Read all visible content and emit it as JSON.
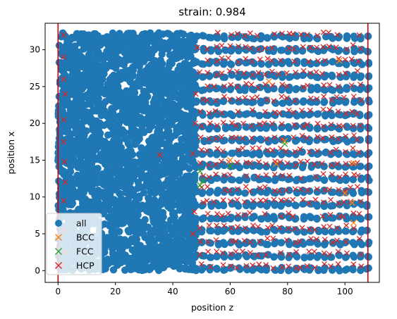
{
  "chart_data": {
    "type": "scatter",
    "title": "strain: 0.984",
    "xlabel": "position z",
    "ylabel": "position x",
    "xlim": [
      -4.5,
      112
    ],
    "ylim": [
      -1.6,
      33.6
    ],
    "xticks": [
      0,
      20,
      40,
      60,
      80,
      100
    ],
    "yticks": [
      0,
      5,
      10,
      15,
      20,
      25,
      30
    ],
    "grid": false,
    "legend": {
      "placement": "lower-left",
      "entries": [
        {
          "label": "all",
          "marker": "circle",
          "color": "#1f77b4"
        },
        {
          "label": "BCC",
          "marker": "x",
          "color": "#ff7f0e"
        },
        {
          "label": "FCC",
          "marker": "x",
          "color": "#2ca02c"
        },
        {
          "label": "HCP",
          "marker": "x",
          "color": "#d62728"
        }
      ]
    },
    "vertical_lines": [
      {
        "x": 0,
        "color": "#cc0000"
      },
      {
        "x": 108,
        "color": "#cc0000"
      }
    ],
    "series": [
      {
        "name": "all",
        "marker": "circle",
        "color": "#1f77b4",
        "description_regions": {
          "disordered_z_range": [
            0,
            48
          ],
          "ordered_z_range": [
            48,
            108
          ],
          "x_range": [
            0,
            32.3
          ],
          "ordered_row_spacing": 1.75,
          "ordered_col_spacing": 2.5
        }
      },
      {
        "name": "HCP",
        "marker": "x",
        "color": "#d62728",
        "points": [
          [
            2,
            32
          ],
          [
            2,
            29
          ],
          [
            2,
            26
          ],
          [
            2.5,
            24
          ],
          [
            2,
            20.5
          ],
          [
            2,
            17.5
          ],
          [
            2.2,
            14.8
          ],
          [
            2.5,
            12
          ],
          [
            2,
            9.5
          ],
          [
            2,
            5.5
          ],
          [
            2.5,
            2.5
          ],
          [
            1.5,
            0.8
          ],
          [
            35.5,
            15.7
          ],
          [
            47,
            15.9
          ],
          [
            47.5,
            8
          ],
          [
            47,
            5
          ],
          [
            48,
            24
          ],
          [
            48.5,
            30.3
          ],
          [
            47.8,
            20
          ]
        ]
      },
      {
        "name": "BCC",
        "marker": "x",
        "color": "#ff7f0e",
        "points": [
          [
            73.5,
            25.7
          ],
          [
            76,
            14.5
          ],
          [
            60,
            15
          ],
          [
            100,
            10.5
          ],
          [
            102.5,
            9.2
          ],
          [
            103,
            6.5
          ],
          [
            103,
            14.6
          ],
          [
            79,
            17.6
          ],
          [
            98,
            28.5
          ]
        ]
      },
      {
        "name": "FCC",
        "marker": "x",
        "color": "#2ca02c",
        "points": [
          [
            49.5,
            13.5
          ],
          [
            49.5,
            11.6
          ],
          [
            50.5,
            12.2
          ],
          [
            60,
            14.2
          ],
          [
            79,
            17.2
          ]
        ]
      }
    ]
  }
}
